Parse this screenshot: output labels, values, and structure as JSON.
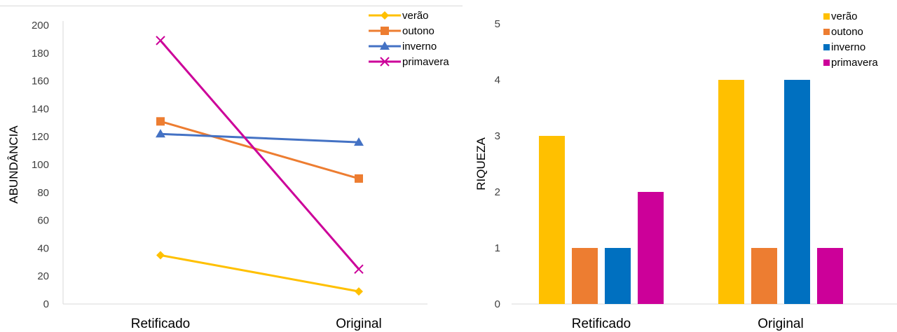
{
  "chart_data": [
    {
      "type": "line",
      "title": "",
      "xlabel": "",
      "ylabel": "ABUNDÂNCIA",
      "ylim": [
        0,
        200
      ],
      "yticks": [
        0,
        20,
        40,
        60,
        80,
        100,
        120,
        140,
        160,
        180,
        200
      ],
      "categories": [
        "Retificado",
        "Original"
      ],
      "legend_position": "top-right",
      "grid": false,
      "series": [
        {
          "name": "verão",
          "values": [
            35,
            9
          ],
          "color": "#FFC000",
          "marker": "diamond"
        },
        {
          "name": "outono",
          "values": [
            131,
            90
          ],
          "color": "#ED7D31",
          "marker": "square"
        },
        {
          "name": "inverno",
          "values": [
            122,
            116
          ],
          "color": "#4472C4",
          "marker": "triangle"
        },
        {
          "name": "primavera",
          "values": [
            189,
            25
          ],
          "color": "#CC0099",
          "marker": "x"
        }
      ]
    },
    {
      "type": "bar",
      "title": "",
      "xlabel": "",
      "ylabel": "RIQUEZA",
      "ylim": [
        0,
        5
      ],
      "yticks": [
        0,
        1,
        2,
        3,
        4,
        5
      ],
      "categories": [
        "Retificado",
        "Original"
      ],
      "legend_position": "top-right",
      "grid": false,
      "series": [
        {
          "name": "verão",
          "values": [
            3,
            4
          ],
          "color": "#FFC000"
        },
        {
          "name": "outono",
          "values": [
            1,
            1
          ],
          "color": "#ED7D31"
        },
        {
          "name": "inverno",
          "values": [
            1,
            4
          ],
          "color": "#0070C0"
        },
        {
          "name": "primavera",
          "values": [
            2,
            1
          ],
          "color": "#CC0099"
        }
      ]
    }
  ]
}
